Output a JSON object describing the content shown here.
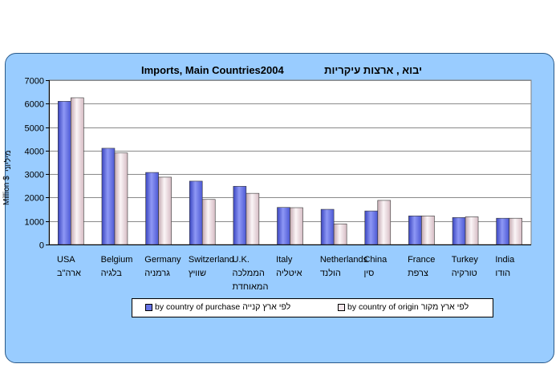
{
  "chart_data": {
    "type": "bar",
    "title_en": "Imports, Main Countries2004",
    "title_he": "יבוא , ארצות עיקריות",
    "ylabel_en": "Million $",
    "ylabel_he": "מיליוני",
    "ylim": [
      0,
      7000
    ],
    "yticks": [
      0,
      1000,
      2000,
      3000,
      4000,
      5000,
      6000,
      7000
    ],
    "grid": true,
    "legend_position": "bottom",
    "categories": [
      {
        "en": "USA",
        "he": "ארה\"ב",
        "he2": ""
      },
      {
        "en": "Belgium",
        "he": "בלגיה",
        "he2": ""
      },
      {
        "en": "Germany",
        "he": "גרמניה",
        "he2": ""
      },
      {
        "en": "Switzerland",
        "he": "שוויץ",
        "he2": ""
      },
      {
        "en": "U.K.",
        "he": "הממלכה",
        "he2": "המאוחדת"
      },
      {
        "en": "Italy",
        "he": "איטליה",
        "he2": ""
      },
      {
        "en": "Netherlands",
        "he": "הולנד",
        "he2": ""
      },
      {
        "en": "China",
        "he": "סין",
        "he2": ""
      },
      {
        "en": "France",
        "he": "צרפת",
        "he2": ""
      },
      {
        "en": "Turkey",
        "he": "טורקיה",
        "he2": ""
      },
      {
        "en": "India",
        "he": "הודו",
        "he2": ""
      }
    ],
    "series": [
      {
        "name": "by country of purchase",
        "name_he": "לפי ארץ קנייה",
        "color": "#6673e6",
        "values": [
          6100,
          4100,
          3070,
          2700,
          2480,
          1580,
          1500,
          1430,
          1220,
          1150,
          1120
        ]
      },
      {
        "name": "by country of origin",
        "name_he": "לפי ארץ מקור",
        "color": "#f2e6ea",
        "values": [
          6250,
          3900,
          2870,
          1920,
          2180,
          1570,
          880,
          1880,
          1220,
          1180,
          1120
        ]
      }
    ]
  }
}
